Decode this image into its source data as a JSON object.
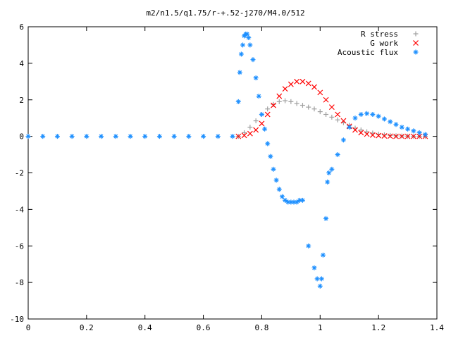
{
  "chart_data": {
    "type": "scatter",
    "title": "m2/n1.5/q1.75/r-+.52-j270/M4.0/512",
    "xlabel": "",
    "ylabel": "",
    "xlim": [
      0,
      1.4
    ],
    "ylim": [
      -10,
      6
    ],
    "xticks": [
      "0",
      "0.2",
      "0.4",
      "0.6",
      "0.8",
      "1",
      "1.2",
      "1.4"
    ],
    "yticks": [
      "6",
      "4",
      "2",
      "0",
      "-2",
      "-4",
      "-6",
      "-8",
      "-10"
    ],
    "grid": false,
    "legend_position": "top-right",
    "series": [
      {
        "name": "R stress",
        "marker": "+",
        "color": "#a0a0a0",
        "x": [
          0.72,
          0.74,
          0.76,
          0.78,
          0.8,
          0.82,
          0.84,
          0.86,
          0.88,
          0.9,
          0.92,
          0.94,
          0.96,
          0.98,
          1.0,
          1.02,
          1.04,
          1.06,
          1.08,
          1.1,
          1.12,
          1.14,
          1.16,
          1.18,
          1.2,
          1.22,
          1.24,
          1.26,
          1.28,
          1.3,
          1.32,
          1.34,
          1.36
        ],
        "y": [
          0.0,
          0.2,
          0.5,
          0.85,
          1.2,
          1.5,
          1.75,
          1.9,
          1.95,
          1.9,
          1.8,
          1.7,
          1.6,
          1.5,
          1.35,
          1.2,
          1.05,
          0.9,
          0.75,
          0.6,
          0.45,
          0.35,
          0.25,
          0.18,
          0.12,
          0.08,
          0.05,
          0.03,
          0.02,
          0.01,
          0.0,
          0.0,
          0.0
        ]
      },
      {
        "name": "G work",
        "marker": "x",
        "color": "#ff0000",
        "x": [
          0.72,
          0.74,
          0.76,
          0.78,
          0.8,
          0.82,
          0.84,
          0.86,
          0.88,
          0.9,
          0.92,
          0.94,
          0.96,
          0.98,
          1.0,
          1.02,
          1.04,
          1.06,
          1.08,
          1.1,
          1.12,
          1.14,
          1.16,
          1.18,
          1.2,
          1.22,
          1.24,
          1.26,
          1.28,
          1.3,
          1.32,
          1.34,
          1.36
        ],
        "y": [
          0.0,
          0.05,
          0.15,
          0.35,
          0.7,
          1.2,
          1.7,
          2.2,
          2.6,
          2.85,
          3.0,
          3.0,
          2.9,
          2.7,
          2.4,
          2.0,
          1.6,
          1.2,
          0.85,
          0.55,
          0.35,
          0.2,
          0.12,
          0.07,
          0.04,
          0.02,
          0.01,
          0.0,
          0.0,
          0.0,
          0.0,
          0.0,
          0.0
        ]
      },
      {
        "name": "Acoustic flux",
        "marker": "*",
        "color": "#1e90ff",
        "x": [
          0.0,
          0.05,
          0.1,
          0.15,
          0.2,
          0.25,
          0.3,
          0.35,
          0.4,
          0.45,
          0.5,
          0.55,
          0.6,
          0.65,
          0.7,
          0.72,
          0.725,
          0.73,
          0.735,
          0.74,
          0.745,
          0.75,
          0.755,
          0.76,
          0.77,
          0.78,
          0.79,
          0.8,
          0.81,
          0.82,
          0.83,
          0.84,
          0.85,
          0.86,
          0.87,
          0.88,
          0.89,
          0.9,
          0.91,
          0.92,
          0.93,
          0.94,
          0.96,
          0.98,
          0.99,
          1.0,
          1.005,
          1.01,
          1.02,
          1.025,
          1.03,
          1.04,
          1.06,
          1.08,
          1.1,
          1.12,
          1.14,
          1.16,
          1.18,
          1.2,
          1.22,
          1.24,
          1.26,
          1.28,
          1.3,
          1.32,
          1.34,
          1.36
        ],
        "y": [
          0.0,
          0.0,
          0.0,
          0.0,
          0.0,
          0.0,
          0.0,
          0.0,
          0.0,
          0.0,
          0.0,
          0.0,
          0.0,
          0.0,
          0.0,
          1.9,
          3.5,
          4.5,
          5.0,
          5.5,
          5.6,
          5.6,
          5.4,
          5.0,
          4.2,
          3.2,
          2.2,
          1.2,
          0.4,
          -0.4,
          -1.1,
          -1.8,
          -2.4,
          -2.9,
          -3.3,
          -3.5,
          -3.6,
          -3.6,
          -3.6,
          -3.6,
          -3.5,
          -3.5,
          -6.0,
          -7.2,
          -7.8,
          -8.2,
          -7.8,
          -6.5,
          -4.5,
          -2.5,
          -2.0,
          -1.8,
          -1.0,
          -0.2,
          0.5,
          1.0,
          1.2,
          1.25,
          1.2,
          1.1,
          0.95,
          0.8,
          0.65,
          0.5,
          0.4,
          0.3,
          0.2,
          0.1
        ]
      }
    ]
  }
}
